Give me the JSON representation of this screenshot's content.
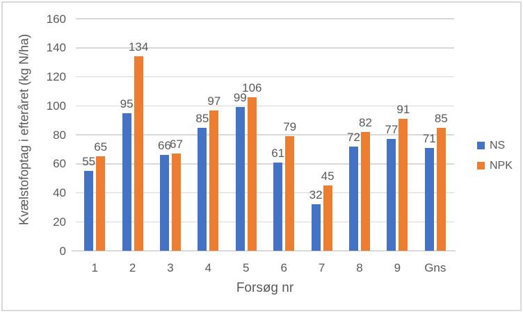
{
  "chart_data": {
    "type": "bar",
    "title": "",
    "categories": [
      "1",
      "2",
      "3",
      "4",
      "5",
      "6",
      "7",
      "8",
      "9",
      "Gns"
    ],
    "series": [
      {
        "name": "NS",
        "color": "#4472C4",
        "values": [
          55,
          95,
          66,
          85,
          99,
          61,
          32,
          72,
          77,
          71
        ]
      },
      {
        "name": "NPK",
        "color": "#ED7D31",
        "values": [
          65,
          134,
          67,
          97,
          106,
          79,
          45,
          82,
          91,
          85
        ]
      }
    ],
    "xlabel": "Forsøg nr",
    "ylabel": "Kvælstofoptag i efteråret (kg N/ha)",
    "ylim": [
      0,
      160
    ],
    "yticks": [
      0,
      20,
      40,
      60,
      80,
      100,
      120,
      140,
      160
    ],
    "grid": true,
    "data_labels": "outside-end",
    "legend_position": "right",
    "colors": {
      "text": "#595959",
      "gridline": "#D9D9D9",
      "axis_line": "#D9D9D9",
      "frame_border": "#D9D9D9",
      "background": "#FFFFFF"
    }
  }
}
